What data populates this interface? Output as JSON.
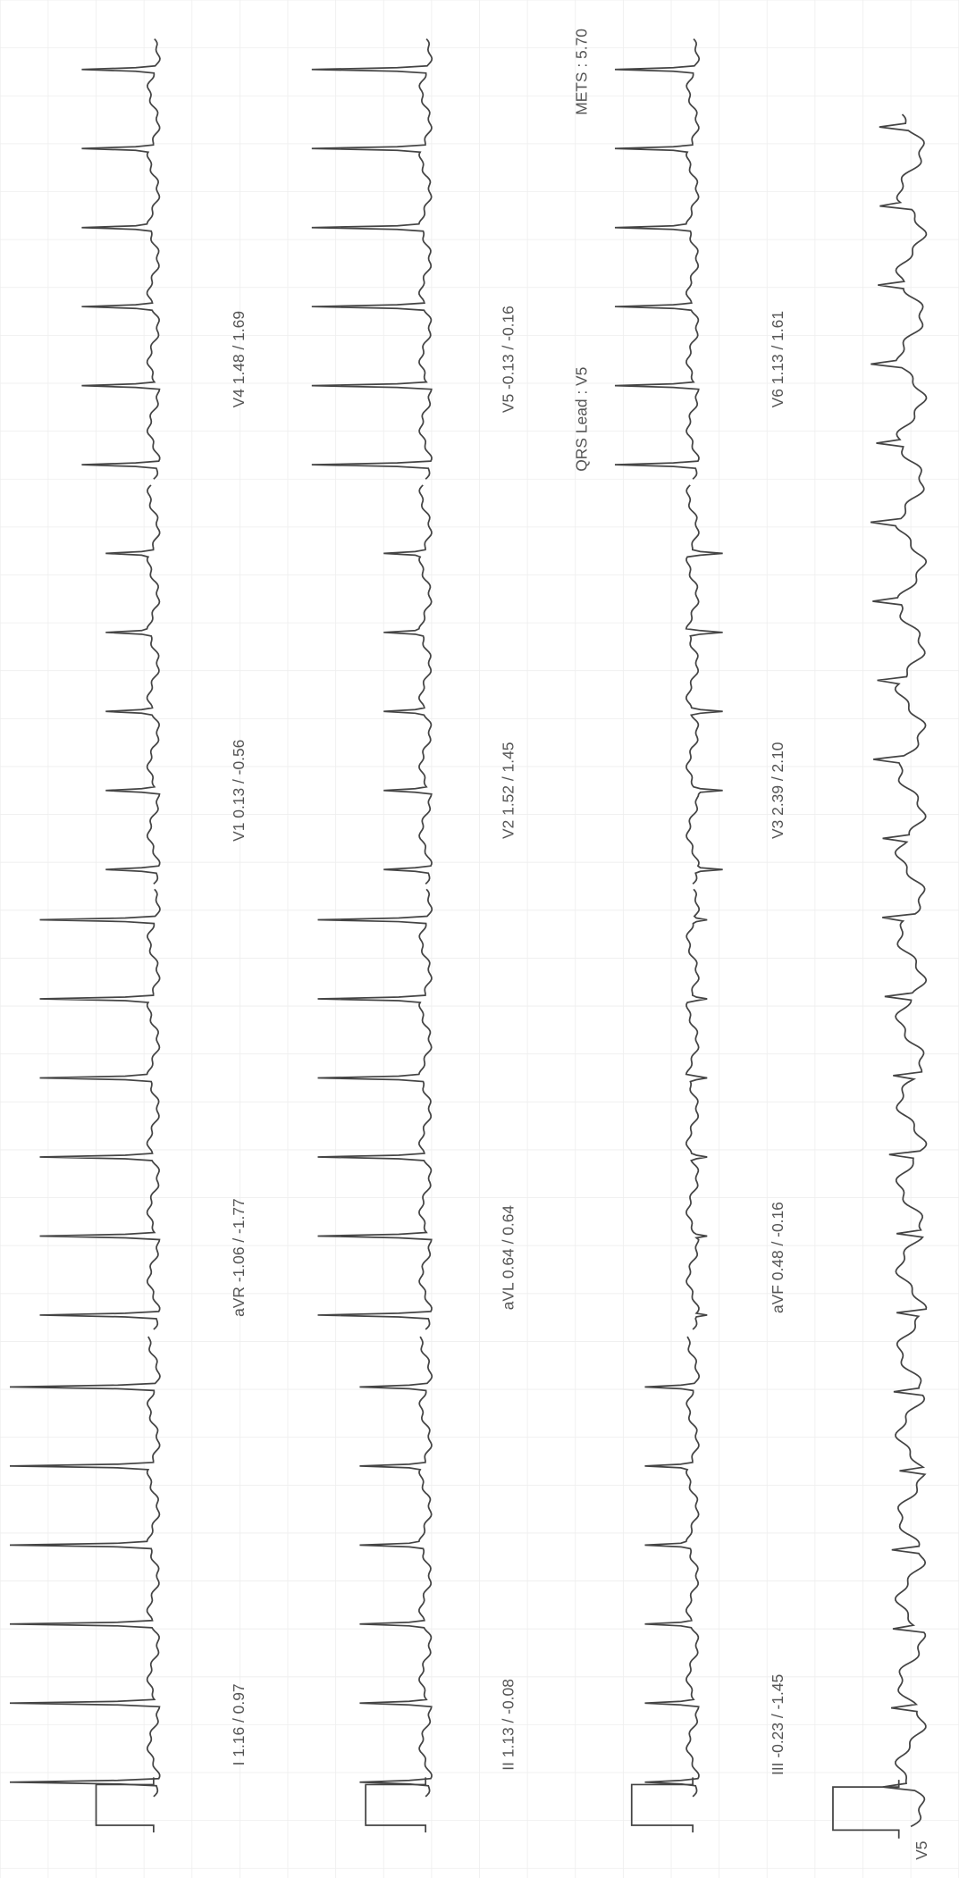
{
  "header": {
    "qrs_lead": "QRS Lead   : V5",
    "mets": "METS   : 5.70"
  },
  "leads": [
    {
      "label": "I  1.16 / 0.97"
    },
    {
      "label": "aVR  -1.06 / -1.77"
    },
    {
      "label": "V1  0.13 / -0.56"
    },
    {
      "label": "V4  1.48 / 1.69"
    },
    {
      "label": "II  1.13 / -0.08"
    },
    {
      "label": "aVL  0.64 / 0.64"
    },
    {
      "label": "V2  1.52 / 1.45"
    },
    {
      "label": "V5  -0.13 / -0.16"
    },
    {
      "label": "III  -0.23 / -1.45"
    },
    {
      "label": "aVF  0.48 / -0.16"
    },
    {
      "label": "V3  2.39 / 2.10"
    },
    {
      "label": "V6  1.13 / 1.61"
    }
  ],
  "rhythm_label": "V5"
}
